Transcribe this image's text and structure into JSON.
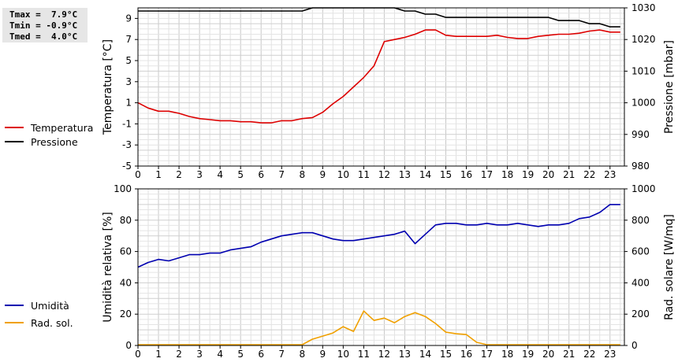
{
  "stats": {
    "tmax": "Tmax =  7.9°C",
    "tmin": "Tmin = -0.9°C",
    "tmed": "Tmed =  4.0°C"
  },
  "chart_data": [
    {
      "type": "line",
      "x_ticks": [
        "0",
        "1",
        "2",
        "3",
        "4",
        "5",
        "6",
        "7",
        "8",
        "9",
        "10",
        "11",
        "12",
        "13",
        "14",
        "15",
        "16",
        "17",
        "18",
        "19",
        "20",
        "21",
        "22",
        "23"
      ],
      "left_axis": {
        "label": "Temperatura [°C]",
        "range": [
          -5,
          10
        ],
        "ticks": [
          "-5",
          "-3",
          "-1",
          "1",
          "3",
          "5",
          "7",
          "9"
        ]
      },
      "right_axis": {
        "label": "Pressione [mbar]",
        "range": [
          980,
          1030
        ],
        "ticks": [
          "980",
          "990",
          "1000",
          "1010",
          "1020",
          "1030"
        ]
      },
      "series": [
        {
          "name": "Temperatura",
          "axis": "left",
          "color": "#dd0000",
          "points": [
            [
              0,
              1.0
            ],
            [
              0.5,
              0.5
            ],
            [
              1,
              0.2
            ],
            [
              1.5,
              0.2
            ],
            [
              2,
              0.0
            ],
            [
              2.5,
              -0.3
            ],
            [
              3,
              -0.5
            ],
            [
              3.5,
              -0.6
            ],
            [
              4,
              -0.7
            ],
            [
              4.5,
              -0.7
            ],
            [
              5,
              -0.8
            ],
            [
              5.5,
              -0.8
            ],
            [
              6,
              -0.9
            ],
            [
              6.5,
              -0.9
            ],
            [
              7,
              -0.7
            ],
            [
              7.5,
              -0.7
            ],
            [
              8,
              -0.5
            ],
            [
              8.5,
              -0.4
            ],
            [
              9,
              0.1
            ],
            [
              9.5,
              0.9
            ],
            [
              10,
              1.6
            ],
            [
              10.5,
              2.5
            ],
            [
              11,
              3.4
            ],
            [
              11.5,
              4.5
            ],
            [
              12,
              6.8
            ],
            [
              12.5,
              7.0
            ],
            [
              13,
              7.2
            ],
            [
              13.5,
              7.5
            ],
            [
              14,
              7.9
            ],
            [
              14.5,
              7.9
            ],
            [
              15,
              7.4
            ],
            [
              15.5,
              7.3
            ],
            [
              16,
              7.3
            ],
            [
              16.5,
              7.3
            ],
            [
              17,
              7.3
            ],
            [
              17.5,
              7.4
            ],
            [
              18,
              7.2
            ],
            [
              18.5,
              7.1
            ],
            [
              19,
              7.1
            ],
            [
              19.5,
              7.3
            ],
            [
              20,
              7.4
            ],
            [
              20.5,
              7.5
            ],
            [
              21,
              7.5
            ],
            [
              21.5,
              7.6
            ],
            [
              22,
              7.8
            ],
            [
              22.5,
              7.9
            ],
            [
              23,
              7.7
            ],
            [
              23.5,
              7.7
            ]
          ]
        },
        {
          "name": "Pressione",
          "axis": "right",
          "color": "#000000",
          "points": [
            [
              0,
              1029
            ],
            [
              8,
              1029
            ],
            [
              8.5,
              1030
            ],
            [
              12.5,
              1030
            ],
            [
              13,
              1029
            ],
            [
              13.5,
              1029
            ],
            [
              14,
              1028
            ],
            [
              14.5,
              1028
            ],
            [
              15,
              1027
            ],
            [
              20,
              1027
            ],
            [
              20.5,
              1026
            ],
            [
              21.5,
              1026
            ],
            [
              22,
              1025
            ],
            [
              22.5,
              1025
            ],
            [
              23,
              1024
            ],
            [
              23.5,
              1024
            ]
          ]
        }
      ]
    },
    {
      "type": "line",
      "x_ticks": [
        "0",
        "1",
        "2",
        "3",
        "4",
        "5",
        "6",
        "7",
        "8",
        "9",
        "10",
        "11",
        "12",
        "13",
        "14",
        "15",
        "16",
        "17",
        "18",
        "19",
        "20",
        "21",
        "22",
        "23"
      ],
      "left_axis": {
        "label": "Umidità relativa [%]",
        "range": [
          0,
          100
        ],
        "ticks": [
          "0",
          "20",
          "40",
          "60",
          "80",
          "100"
        ]
      },
      "right_axis": {
        "label": "Rad. solare [W/mq]",
        "range": [
          0,
          1000
        ],
        "ticks": [
          "0",
          "200",
          "400",
          "600",
          "800",
          "1000"
        ]
      },
      "series": [
        {
          "name": "Umidità",
          "axis": "left",
          "color": "#0000b0",
          "points": [
            [
              0,
              50
            ],
            [
              0.5,
              53
            ],
            [
              1,
              55
            ],
            [
              1.5,
              54
            ],
            [
              2,
              56
            ],
            [
              2.5,
              58
            ],
            [
              3,
              58
            ],
            [
              3.5,
              59
            ],
            [
              4,
              59
            ],
            [
              4.5,
              61
            ],
            [
              5,
              62
            ],
            [
              5.5,
              63
            ],
            [
              6,
              66
            ],
            [
              6.5,
              68
            ],
            [
              7,
              70
            ],
            [
              7.5,
              71
            ],
            [
              8,
              72
            ],
            [
              8.5,
              72
            ],
            [
              9,
              70
            ],
            [
              9.5,
              68
            ],
            [
              10,
              67
            ],
            [
              10.5,
              67
            ],
            [
              11,
              68
            ],
            [
              11.5,
              69
            ],
            [
              12,
              70
            ],
            [
              12.5,
              71
            ],
            [
              13,
              73
            ],
            [
              13.5,
              65
            ],
            [
              14,
              71
            ],
            [
              14.5,
              77
            ],
            [
              15,
              78
            ],
            [
              15.5,
              78
            ],
            [
              16,
              77
            ],
            [
              16.5,
              77
            ],
            [
              17,
              78
            ],
            [
              17.5,
              77
            ],
            [
              18,
              77
            ],
            [
              18.5,
              78
            ],
            [
              19,
              77
            ],
            [
              19.5,
              76
            ],
            [
              20,
              77
            ],
            [
              20.5,
              77
            ],
            [
              21,
              78
            ],
            [
              21.5,
              81
            ],
            [
              22,
              82
            ],
            [
              22.5,
              85
            ],
            [
              23,
              90
            ],
            [
              23.5,
              90
            ]
          ]
        },
        {
          "name": "Rad. sol.",
          "axis": "right",
          "color": "#f0a000",
          "points": [
            [
              0,
              5
            ],
            [
              8,
              5
            ],
            [
              8.5,
              40
            ],
            [
              9,
              60
            ],
            [
              9.5,
              80
            ],
            [
              10,
              120
            ],
            [
              10.5,
              90
            ],
            [
              11,
              220
            ],
            [
              11.5,
              160
            ],
            [
              12,
              175
            ],
            [
              12.5,
              145
            ],
            [
              13,
              185
            ],
            [
              13.5,
              210
            ],
            [
              14,
              185
            ],
            [
              14.5,
              140
            ],
            [
              15,
              85
            ],
            [
              15.5,
              75
            ],
            [
              16,
              70
            ],
            [
              16.5,
              20
            ],
            [
              17,
              5
            ],
            [
              23.5,
              5
            ]
          ]
        }
      ]
    }
  ]
}
